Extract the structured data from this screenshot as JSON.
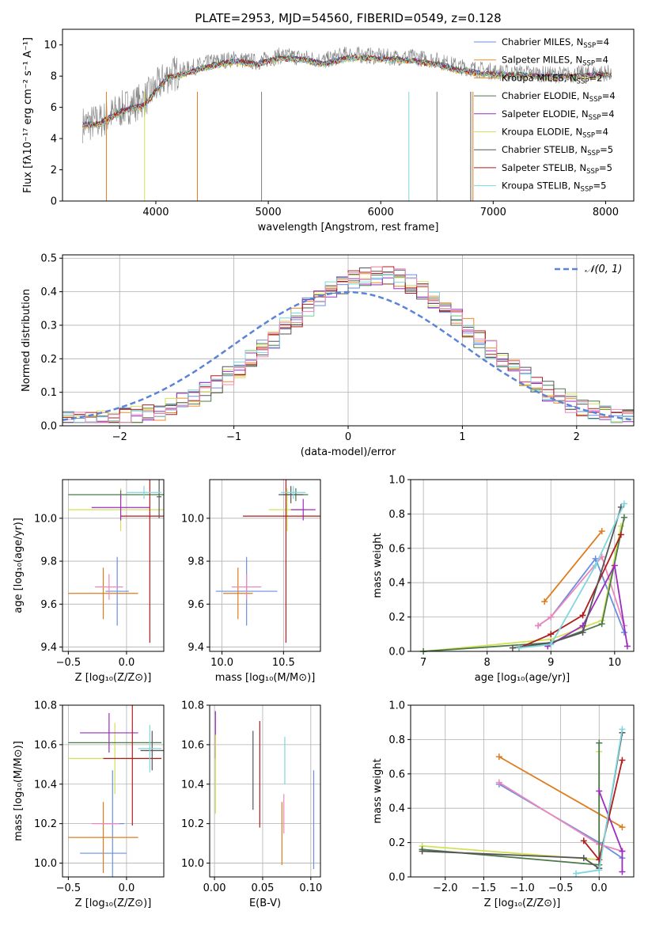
{
  "colors": {
    "Chabrier MILES": "#1f77b4",
    "Salpeter MILES": "#ff7f0e",
    "Kroupa MILES": "#e0862d",
    "Chabrier ELODIE": "#4b7a4b",
    "Salpeter ELODIE": "#9b2dbf",
    "Kroupa ELODIE": "#d4e157",
    "Chabrier STELIB": "#555555",
    "Salpeter STELIB": "#b01c1c",
    "Kroupa STELIB": "#7fd6dc",
    "Chabrier MILES_alt": "#6a8fe0",
    "Salpeter MILES_alt": "#e07b1c",
    "pink": "#ee88bb"
  },
  "chart_data": [
    {
      "id": "spectrum",
      "type": "line",
      "title": "PLATE=2953, MJD=54560, FIBERID=0549, z=0.128",
      "xlabel": "wavelength [Angstrom, rest frame]",
      "ylabel": "Flux [fλ10⁻¹⁷ erg cm⁻² s⁻¹ A⁻¹]",
      "xlim": [
        3170,
        8250
      ],
      "ylim": [
        0,
        11
      ],
      "xticks": [
        "4000",
        "5000",
        "6000",
        "7000",
        "8000"
      ],
      "yticks": [
        "0",
        "2",
        "4",
        "6",
        "8",
        "10"
      ],
      "legend": [
        {
          "label": "Chabrier MILES, N",
          "sub": "SSP",
          "suffix": "=4",
          "color": "#6a8fe0"
        },
        {
          "label": "Salpeter MILES, N",
          "sub": "SSP",
          "suffix": "=4",
          "color": "#f08a24"
        },
        {
          "label": "Kroupa MILES, N",
          "sub": "SSP",
          "suffix": "=2",
          "color": "#e0862d"
        },
        {
          "label": "Chabrier ELODIE, N",
          "sub": "SSP",
          "suffix": "=4",
          "color": "#4b7a4b"
        },
        {
          "label": "Salpeter ELODIE, N",
          "sub": "SSP",
          "suffix": "=4",
          "color": "#9b2dbf"
        },
        {
          "label": "Kroupa ELODIE, N",
          "sub": "SSP",
          "suffix": "=4",
          "color": "#d4e157"
        },
        {
          "label": "Chabrier STELIB, N",
          "sub": "SSP",
          "suffix": "=5",
          "color": "#555555"
        },
        {
          "label": "Salpeter STELIB, N",
          "sub": "SSP",
          "suffix": "=5",
          "color": "#b01c1c"
        },
        {
          "label": "Kroupa STELIB, N",
          "sub": "SSP",
          "suffix": "=5",
          "color": "#7fd6dc"
        }
      ],
      "series": [
        {
          "name": "data",
          "color": "#808080",
          "x": [
            3350,
            3500,
            3700,
            3900,
            4100,
            4300,
            4500,
            4700,
            4900,
            5100,
            5300,
            5500,
            5700,
            5900,
            6100,
            6300,
            6500,
            6700,
            6900,
            7100,
            7300,
            7500,
            7700,
            7900,
            8050
          ],
          "y": [
            4.9,
            5.1,
            5.9,
            6.5,
            8.0,
            8.5,
            8.9,
            9.1,
            8.9,
            9.3,
            9.2,
            9.0,
            9.4,
            9.3,
            9.2,
            9.2,
            9.0,
            8.6,
            8.4,
            8.2,
            8.2,
            8.1,
            8.1,
            8.2,
            8.2
          ]
        },
        {
          "name": "model",
          "color": "#7fd6dc",
          "x": [
            3350,
            3500,
            3700,
            3900,
            4100,
            4300,
            4500,
            4700,
            4900,
            5100,
            5300,
            5500,
            5700,
            5900,
            6100,
            6300,
            6500,
            6700,
            6900,
            7100,
            7300,
            7500,
            7700,
            7900,
            8050
          ],
          "y": [
            4.9,
            5.0,
            5.8,
            6.2,
            7.9,
            8.3,
            8.7,
            9.0,
            8.8,
            9.2,
            9.1,
            8.8,
            9.2,
            9.2,
            9.1,
            9.0,
            8.8,
            8.4,
            8.2,
            8.1,
            8.1,
            8.0,
            8.0,
            8.1,
            8.1
          ]
        }
      ]
    },
    {
      "id": "residuals",
      "type": "line",
      "xlabel": "(data-model)/error",
      "ylabel": "Normed distribution",
      "xlim": [
        -2.5,
        2.5
      ],
      "ylim": [
        0,
        0.51
      ],
      "xticks": [
        "−2",
        "−1",
        "0",
        "1",
        "2"
      ],
      "yticks": [
        "0.0",
        "0.1",
        "0.2",
        "0.3",
        "0.4",
        "0.5"
      ],
      "legend": [
        {
          "label": "𝒩(0, 1)",
          "color": "#5b84d6"
        }
      ],
      "bin_width": 0.1,
      "series_colors": [
        "#6a8fe0",
        "#f08a24",
        "#4b7a4b",
        "#9b2dbf",
        "#d4e157",
        "#555555",
        "#b01c1c",
        "#7fd6dc",
        "#ee88bb"
      ]
    },
    {
      "id": "age_vs_z",
      "type": "scatter",
      "xlabel": "Z [log₁₀(Z/Z⊙)]",
      "ylabel": "age  [log₁₀(age/yr)]",
      "xlim": [
        -0.55,
        0.32
      ],
      "ylim": [
        9.38,
        10.18
      ],
      "xticks": [
        "−0.5",
        "0.0"
      ],
      "yticks": [
        "9.4",
        "9.6",
        "9.8",
        "10.0"
      ],
      "points": [
        {
          "x": -0.08,
          "y": 9.66,
          "xerr": 0.1,
          "yerr": 0.16,
          "color": "#6a8fe0"
        },
        {
          "x": -0.2,
          "y": 9.65,
          "xerr": 0.3,
          "yerr": 0.12,
          "color": "#e07b1c"
        },
        {
          "x": -0.15,
          "y": 9.68,
          "xerr": 0.12,
          "yerr": 0.06,
          "color": "#ee88bb"
        },
        {
          "x": -0.05,
          "y": 10.04,
          "xerr": 0.45,
          "yerr": 0.1,
          "color": "#d4e157"
        },
        {
          "x": -0.05,
          "y": 10.11,
          "xerr": 0.45,
          "yerr": 0.02,
          "color": "#4b7a4b"
        },
        {
          "x": -0.05,
          "y": 10.05,
          "xerr": 0.25,
          "yerr": 0.06,
          "color": "#9b2dbf"
        },
        {
          "x": 0.2,
          "y": 10.01,
          "xerr": 0.25,
          "yerr": 0.59,
          "color": "#b01c1c"
        },
        {
          "x": 0.28,
          "y": 10.1,
          "xerr": 0.02,
          "yerr": 0.1,
          "color": "#555555"
        },
        {
          "x": 0.15,
          "y": 10.12,
          "xerr": 0.15,
          "yerr": 0.03,
          "color": "#7fd6dc"
        }
      ]
    },
    {
      "id": "age_vs_mass",
      "type": "scatter",
      "xlabel": "mass [log₁₀(M/M⊙)]",
      "ylabel": "",
      "xlim": [
        9.9,
        10.8
      ],
      "ylim": [
        9.38,
        10.18
      ],
      "xticks": [
        "10.0",
        "10.5"
      ],
      "yticks": [
        "9.4",
        "9.6",
        "9.8",
        "10.0"
      ],
      "points": [
        {
          "x": 10.2,
          "y": 9.66,
          "xerr": 0.25,
          "yerr": 0.16,
          "color": "#6a8fe0"
        },
        {
          "x": 10.13,
          "y": 9.65,
          "xerr": 0.12,
          "yerr": 0.12,
          "color": "#e07b1c"
        },
        {
          "x": 10.2,
          "y": 9.68,
          "xerr": 0.12,
          "yerr": 0.06,
          "color": "#ee88bb"
        },
        {
          "x": 10.53,
          "y": 10.04,
          "xerr": 0.15,
          "yerr": 0.1,
          "color": "#d4e157"
        },
        {
          "x": 10.6,
          "y": 10.11,
          "xerr": 0.1,
          "yerr": 0.03,
          "color": "#4b7a4b"
        },
        {
          "x": 10.66,
          "y": 10.04,
          "xerr": 0.1,
          "yerr": 0.05,
          "color": "#9b2dbf"
        },
        {
          "x": 10.52,
          "y": 10.01,
          "xerr": 0.35,
          "yerr": 0.59,
          "color": "#b01c1c"
        },
        {
          "x": 10.56,
          "y": 10.11,
          "xerr": 0.1,
          "yerr": 0.04,
          "color": "#555555"
        },
        {
          "x": 10.58,
          "y": 10.12,
          "xerr": 0.1,
          "yerr": 0.03,
          "color": "#7fd6dc"
        }
      ]
    },
    {
      "id": "weight_vs_age",
      "type": "line",
      "xlabel": "age  [log₁₀(age/yr)]",
      "ylabel": "mass weight",
      "xlim": [
        6.8,
        10.3
      ],
      "ylim": [
        0,
        1.0
      ],
      "xticks": [
        "7",
        "8",
        "9",
        "10"
      ],
      "yticks": [
        "0.0",
        "0.2",
        "0.4",
        "0.6",
        "0.8",
        "1.0"
      ],
      "series": [
        {
          "color": "#e07b1c",
          "x": [
            8.9,
            9.8
          ],
          "y": [
            0.29,
            0.7
          ]
        },
        {
          "color": "#6a8fe0",
          "x": [
            8.8,
            9.0,
            9.7,
            10.15
          ],
          "y": [
            0.15,
            0.2,
            0.54,
            0.11
          ]
        },
        {
          "color": "#ee88bb",
          "x": [
            8.8,
            9.0,
            9.8,
            10.15
          ],
          "y": [
            0.15,
            0.2,
            0.55,
            0.15
          ]
        },
        {
          "color": "#d4e157",
          "x": [
            7.0,
            9.0,
            9.8,
            10.1
          ],
          "y": [
            0.0,
            0.07,
            0.18,
            0.73
          ]
        },
        {
          "color": "#4b7a4b",
          "x": [
            7.0,
            9.0,
            9.8,
            10.15
          ],
          "y": [
            0.0,
            0.05,
            0.16,
            0.78
          ]
        },
        {
          "color": "#9b2dbf",
          "x": [
            8.95,
            9.5,
            10.0,
            10.2
          ],
          "y": [
            0.03,
            0.15,
            0.5,
            0.03
          ]
        },
        {
          "color": "#b01c1c",
          "x": [
            8.5,
            9.0,
            9.5,
            10.1
          ],
          "y": [
            0.02,
            0.1,
            0.21,
            0.68
          ]
        },
        {
          "color": "#555555",
          "x": [
            8.4,
            9.0,
            9.5,
            10.1
          ],
          "y": [
            0.02,
            0.05,
            0.11,
            0.84
          ]
        },
        {
          "color": "#7fd6dc",
          "x": [
            8.5,
            9.0,
            9.7,
            10.15
          ],
          "y": [
            0.02,
            0.04,
            0.5,
            0.86
          ]
        }
      ]
    },
    {
      "id": "mass_vs_z",
      "type": "scatter",
      "xlabel": "Z [log₁₀(Z/Z⊙)]",
      "ylabel": "mass [log₁₀(M/M⊙)]",
      "xlim": [
        -0.55,
        0.32
      ],
      "ylim": [
        9.93,
        10.8
      ],
      "xticks": [
        "−0.5",
        "0.0"
      ],
      "yticks": [
        "10.0",
        "10.2",
        "10.4",
        "10.6",
        "10.8"
      ],
      "points": [
        {
          "x": -0.2,
          "y": 10.05,
          "xerr": 0.2,
          "yerr": 0.0,
          "color": "#6a8fe0"
        },
        {
          "x": -0.12,
          "y": 10.2,
          "xerr": 0.1,
          "yerr": 0.27,
          "color": "#6a8fe0"
        },
        {
          "x": -0.2,
          "y": 10.13,
          "xerr": 0.3,
          "yerr": 0.18,
          "color": "#e07b1c"
        },
        {
          "x": -0.18,
          "y": 10.2,
          "xerr": 0.12,
          "yerr": 0.0,
          "color": "#ee88bb"
        },
        {
          "x": -0.1,
          "y": 10.53,
          "xerr": 0.4,
          "yerr": 0.18,
          "color": "#d4e157"
        },
        {
          "x": -0.1,
          "y": 10.61,
          "xerr": 0.4,
          "yerr": 0.0,
          "color": "#4b7a4b"
        },
        {
          "x": -0.15,
          "y": 10.66,
          "xerr": 0.25,
          "yerr": 0.1,
          "color": "#9b2dbf"
        },
        {
          "x": 0.05,
          "y": 10.53,
          "xerr": 0.25,
          "yerr": 0.34,
          "color": "#b01c1c"
        },
        {
          "x": 0.22,
          "y": 10.57,
          "xerr": 0.1,
          "yerr": 0.1,
          "color": "#555555"
        },
        {
          "x": 0.2,
          "y": 10.58,
          "xerr": 0.1,
          "yerr": 0.12,
          "color": "#7fd6dc"
        }
      ]
    },
    {
      "id": "mass_vs_ebv",
      "type": "scatter",
      "xlabel": "E(B-V)",
      "ylabel": "",
      "xlim": [
        -0.005,
        0.11
      ],
      "ylim": [
        9.93,
        10.8
      ],
      "xticks": [
        "0.00",
        "0.05",
        "0.10"
      ],
      "yticks": [
        "10.0",
        "10.2",
        "10.4",
        "10.6",
        "10.8"
      ],
      "points": [
        {
          "x": 0.001,
          "y": 10.65,
          "yerr": 0.12,
          "color": "#9b2dbf"
        },
        {
          "x": 0.001,
          "y": 10.45,
          "yerr": 0.2,
          "color": "#d4e157"
        },
        {
          "x": 0.04,
          "y": 10.47,
          "yerr": 0.2,
          "color": "#555555"
        },
        {
          "x": 0.047,
          "y": 10.45,
          "yerr": 0.27,
          "color": "#b01c1c"
        },
        {
          "x": 0.07,
          "y": 10.15,
          "yerr": 0.16,
          "color": "#e07b1c"
        },
        {
          "x": 0.072,
          "y": 10.25,
          "yerr": 0.1,
          "color": "#ee88bb"
        },
        {
          "x": 0.073,
          "y": 10.52,
          "yerr": 0.12,
          "color": "#7fd6dc"
        },
        {
          "x": 0.103,
          "y": 10.22,
          "yerr": 0.25,
          "color": "#6a8fe0"
        }
      ]
    },
    {
      "id": "weight_vs_z",
      "type": "line",
      "xlabel": "Z [log₁₀(Z/Z⊙)]",
      "ylabel": "mass weight",
      "xlim": [
        -2.45,
        0.45
      ],
      "ylim": [
        0,
        1.0
      ],
      "xticks": [
        "−2.0",
        "−1.5",
        "−1.0",
        "−0.5",
        "0.0"
      ],
      "yticks": [
        "0.0",
        "0.2",
        "0.4",
        "0.6",
        "0.8",
        "1.0"
      ],
      "series": [
        {
          "color": "#e07b1c",
          "x": [
            -1.3,
            0.3
          ],
          "y": [
            0.7,
            0.29
          ]
        },
        {
          "color": "#6a8fe0",
          "x": [
            -1.3,
            0.0,
            0.3
          ],
          "y": [
            0.54,
            0.2,
            0.11
          ]
        },
        {
          "color": "#ee88bb",
          "x": [
            -1.3,
            0.0,
            0.3
          ],
          "y": [
            0.55,
            0.19,
            0.15
          ]
        },
        {
          "color": "#d4e157",
          "x": [
            -2.3,
            0.0,
            0.0
          ],
          "y": [
            0.18,
            0.1,
            0.73
          ]
        },
        {
          "color": "#4b7a4b",
          "x": [
            -2.3,
            0.0,
            0.0
          ],
          "y": [
            0.16,
            0.07,
            0.78
          ]
        },
        {
          "color": "#9b2dbf",
          "x": [
            0.0,
            0.3,
            0.3
          ],
          "y": [
            0.5,
            0.15,
            0.03
          ]
        },
        {
          "color": "#b01c1c",
          "x": [
            -0.2,
            0.0,
            0.3
          ],
          "y": [
            0.21,
            0.1,
            0.68
          ]
        },
        {
          "color": "#555555",
          "x": [
            -2.3,
            -0.2,
            0.0,
            0.3
          ],
          "y": [
            0.15,
            0.11,
            0.05,
            0.84
          ]
        },
        {
          "color": "#7fd6dc",
          "x": [
            -0.3,
            0.0,
            0.3
          ],
          "y": [
            0.02,
            0.04,
            0.86
          ]
        }
      ]
    }
  ]
}
